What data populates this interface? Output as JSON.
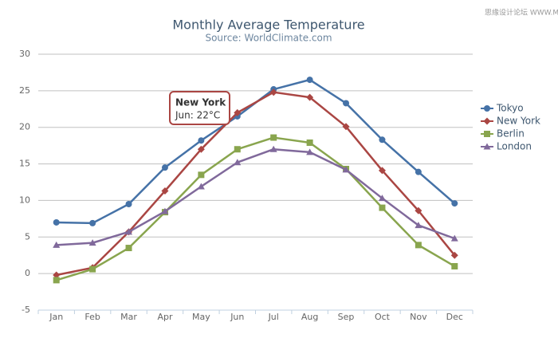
{
  "watermark": "思缘设计论坛 WWW.MISSYUAN.COM",
  "chart_data": {
    "type": "line",
    "title": "Monthly Average Temperature",
    "subtitle": "Source: WorldClimate.com",
    "categories": [
      "Jan",
      "Feb",
      "Mar",
      "Apr",
      "May",
      "Jun",
      "Jul",
      "Aug",
      "Sep",
      "Oct",
      "Nov",
      "Dec"
    ],
    "series": [
      {
        "name": "Tokyo",
        "color": "#4572A7",
        "marker": "circle",
        "values": [
          7.0,
          6.9,
          9.5,
          14.5,
          18.2,
          21.5,
          25.2,
          26.5,
          23.3,
          18.3,
          13.9,
          9.6
        ]
      },
      {
        "name": "New York",
        "color": "#AA4643",
        "marker": "diamond",
        "values": [
          -0.2,
          0.8,
          5.7,
          11.3,
          17.0,
          22.0,
          24.8,
          24.1,
          20.1,
          14.1,
          8.6,
          2.5
        ]
      },
      {
        "name": "Berlin",
        "color": "#89A54E",
        "marker": "square",
        "values": [
          -0.9,
          0.6,
          3.5,
          8.4,
          13.5,
          17.0,
          18.6,
          17.9,
          14.3,
          9.0,
          3.9,
          1.0
        ]
      },
      {
        "name": "London",
        "color": "#80699B",
        "marker": "triangle",
        "values": [
          3.9,
          4.2,
          5.7,
          8.5,
          11.9,
          15.2,
          17.0,
          16.6,
          14.2,
          10.3,
          6.6,
          4.8
        ]
      }
    ],
    "ylim": [
      -5,
      30
    ],
    "yticks": [
      -5,
      0,
      5,
      10,
      15,
      20,
      25,
      30
    ],
    "grid": true,
    "legend": "right",
    "tooltip": {
      "title": "New York",
      "text": "Jun: 22°C"
    }
  }
}
